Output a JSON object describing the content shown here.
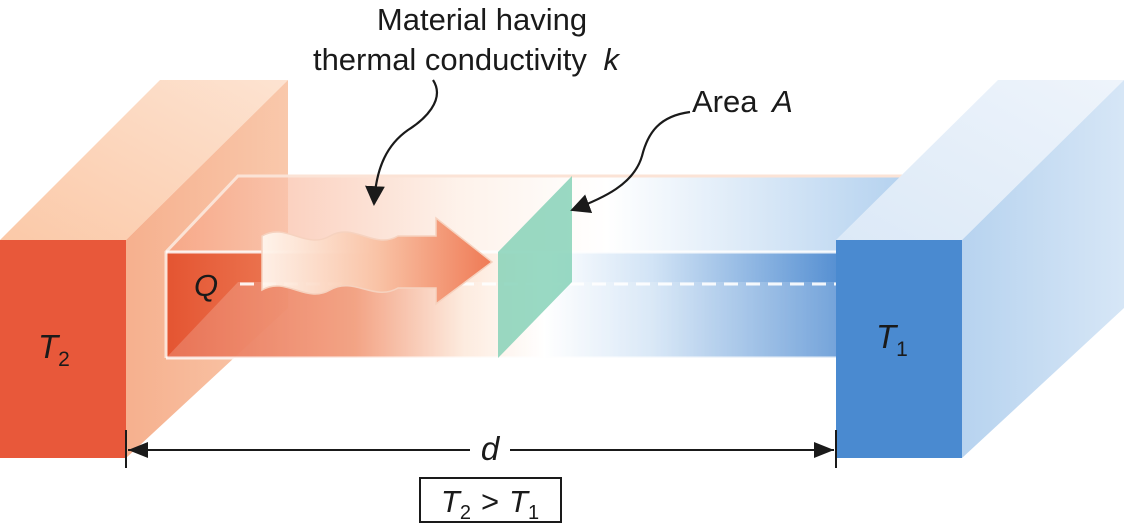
{
  "labels": {
    "material_line1": "Material having",
    "material_line2": "thermal conductivity",
    "material_symbol": "k",
    "area_word": "Area",
    "area_symbol": "A",
    "heat_symbol": "Q",
    "hot_block_main": "T",
    "hot_block_sub": "2",
    "cold_block_main": "T",
    "cold_block_sub": "1",
    "distance_symbol": "d",
    "relation": {
      "left_main": "T",
      "left_sub": "2",
      "operator": ">",
      "right_main": "T",
      "right_sub": "1"
    }
  },
  "colors": {
    "hot": "#e8583a",
    "hot_light": "#f7b896",
    "cold": "#4a8ad0",
    "cold_light": "#cfe2f5",
    "area_plane": "#7fcfb4",
    "text": "#1a1a1a"
  }
}
